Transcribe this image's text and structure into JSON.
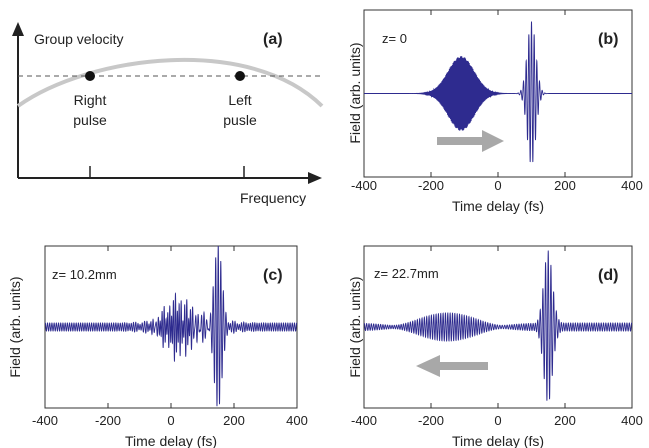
{
  "panels": {
    "a": {
      "label": "(a)",
      "ylabel": "Group velocity",
      "xlabel": "Frequency",
      "points": [
        {
          "label_lines": [
            "Right",
            "pulse"
          ]
        },
        {
          "label_lines": [
            "Left",
            "pusle"
          ]
        }
      ]
    },
    "b": {
      "label": "(b)",
      "z_text": "z= 0"
    },
    "c": {
      "label": "(c)",
      "z_text": "z= 10.2mm"
    },
    "d": {
      "label": "(d)",
      "z_text": "z= 22.7mm"
    }
  },
  "colors": {
    "signal": "#2e2b8f",
    "curve": "#c8c8c8",
    "arrow": "#a8a8a8",
    "axis": "#222222"
  },
  "chart_data": [
    {
      "type": "line",
      "panel": "a",
      "title": "",
      "xlabel": "Frequency",
      "ylabel": "Group velocity",
      "series": [],
      "markers": [
        "Right pulse",
        "Left pusle"
      ],
      "dashed_reference_line": true,
      "axis_ticks_labeled": false
    },
    {
      "type": "line",
      "panel": "b",
      "title": "",
      "xlabel": "Time delay (fs)",
      "ylabel": "Field (arb. units)",
      "xlim": [
        -400,
        400
      ],
      "xticks": [
        -400,
        -200,
        0,
        200,
        400
      ],
      "annotation": "z= 0",
      "arrow_direction": "right",
      "pulses": [
        {
          "center": -110,
          "width": 55,
          "amplitude": 0.52,
          "carrier_period": 2.2,
          "shape": "gaussian"
        },
        {
          "center": 100,
          "width": 18,
          "amplitude": 1.0,
          "carrier_period": 8,
          "shape": "gaussian"
        }
      ]
    },
    {
      "type": "line",
      "panel": "c",
      "title": "",
      "xlabel": "Time delay (fs)",
      "ylabel": "Field (arb. units)",
      "xlim": [
        -400,
        400
      ],
      "xticks": [
        -400,
        -200,
        0,
        200,
        400
      ],
      "annotation": "z= 10.2mm",
      "pulses": [
        {
          "center": 60,
          "width": 110,
          "amplitude": 0.14,
          "carrier_period": 9,
          "shape": "gaussian"
        },
        {
          "center": 20,
          "width": 55,
          "amplitude": 0.28,
          "carrier_period": 6,
          "shape": "gaussian"
        },
        {
          "center": 150,
          "width": 18,
          "amplitude": 1.0,
          "carrier_period": 8,
          "shape": "gaussian"
        }
      ],
      "baseline_ripple": 0.05
    },
    {
      "type": "line",
      "panel": "d",
      "title": "",
      "xlabel": "Time delay (fs)",
      "ylabel": "Field (arb. units)",
      "xlim": [
        -400,
        400
      ],
      "xticks": [
        -400,
        -200,
        0,
        200,
        400
      ],
      "annotation": "z= 22.7mm",
      "arrow_direction": "left",
      "pulses": [
        {
          "center": -150,
          "width": 130,
          "amplitude": 0.22,
          "carrier_period": 7,
          "shape": "gaussian"
        },
        {
          "center": 150,
          "width": 18,
          "amplitude": 1.0,
          "carrier_period": 8,
          "shape": "gaussian"
        }
      ],
      "baseline_ripple": 0.05
    }
  ]
}
